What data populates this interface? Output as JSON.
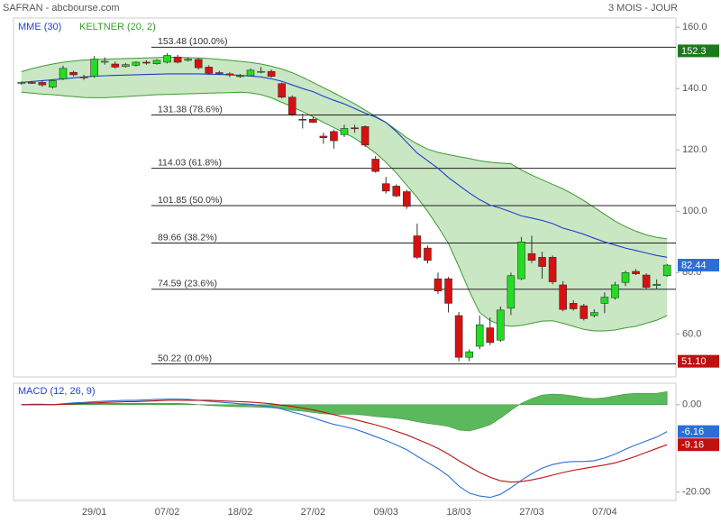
{
  "chart_data": [
    {
      "type": "candlestick",
      "title": "SAFRAN - abcbourse.com",
      "subtitle": "3 MOIS - JOUR",
      "categories": [
        null,
        null,
        null,
        null,
        null,
        null,
        null,
        "29/01",
        null,
        null,
        null,
        null,
        null,
        null,
        "07/02",
        null,
        null,
        null,
        null,
        null,
        null,
        "18/02",
        null,
        null,
        null,
        null,
        null,
        null,
        "27/02",
        null,
        null,
        null,
        null,
        null,
        null,
        "09/03",
        null,
        null,
        null,
        null,
        null,
        null,
        "18/03",
        null,
        null,
        null,
        null,
        null,
        null,
        "27/03",
        null,
        null,
        null,
        null,
        null,
        null,
        "07/04",
        null,
        null,
        null,
        null,
        null,
        null
      ],
      "open": [
        141.8,
        142.0,
        142.0,
        140.5,
        143.2,
        145.3,
        143.8,
        144.0,
        148.6,
        148.0,
        147.2,
        147.6,
        148.6,
        148.1,
        148.6,
        150.3,
        149.2,
        149.5,
        147.0,
        145.2,
        144.8,
        144.0,
        144.2,
        145.4,
        145.6,
        141.6,
        137.2,
        130.0,
        130.0,
        124.5,
        126.0,
        125.0,
        127.2,
        127.6,
        117.0,
        109.0,
        108.2,
        106.4,
        92.0,
        88.0,
        78.0,
        78.0,
        66.0,
        52.4,
        56.0,
        62.0,
        58.0,
        68.4,
        78.0,
        86.2,
        85.0,
        85.0,
        76.0,
        70.0,
        69.2,
        66.0,
        70.0,
        71.8,
        76.8,
        80.4,
        79.2,
        75.8,
        79.0
      ],
      "high": [
        142.4,
        142.5,
        142.6,
        143.0,
        147.5,
        145.8,
        144.5,
        150.6,
        150.2,
        148.8,
        148.4,
        148.9,
        149.2,
        149.6,
        151.5,
        151.0,
        150.2,
        150.0,
        147.6,
        145.8,
        145.3,
        144.8,
        146.6,
        147.0,
        146.2,
        142.0,
        137.8,
        131.8,
        130.8,
        125.6,
        126.6,
        128.2,
        128.2,
        128.0,
        118.0,
        111.2,
        108.8,
        107.0,
        96.0,
        88.8,
        80.0,
        78.6,
        67.2,
        55.0,
        66.0,
        65.4,
        69.0,
        80.0,
        91.6,
        92.0,
        86.8,
        85.6,
        77.2,
        71.0,
        69.8,
        68.0,
        73.6,
        77.0,
        80.6,
        81.2,
        79.8,
        77.8,
        82.8
      ],
      "low": [
        141.2,
        141.5,
        140.6,
        140.0,
        142.8,
        144.0,
        142.8,
        143.5,
        147.8,
        146.5,
        146.8,
        147.2,
        147.8,
        147.8,
        148.2,
        148.2,
        148.8,
        146.2,
        144.6,
        144.5,
        143.8,
        143.5,
        144.0,
        145.0,
        143.6,
        136.8,
        131.0,
        127.0,
        128.8,
        122.0,
        120.4,
        124.2,
        125.6,
        121.0,
        112.6,
        105.8,
        104.6,
        100.8,
        84.4,
        83.0,
        73.0,
        67.0,
        51.1,
        51.2,
        55.0,
        56.4,
        57.4,
        66.2,
        77.6,
        83.2,
        78.0,
        76.2,
        67.4,
        67.6,
        64.4,
        65.4,
        66.8,
        71.2,
        75.6,
        79.2,
        74.6,
        74.8,
        78.6
      ],
      "close": [
        142.0,
        141.8,
        141.2,
        142.6,
        146.6,
        144.5,
        143.7,
        149.6,
        148.9,
        147.0,
        147.8,
        148.6,
        148.4,
        149.2,
        150.8,
        148.6,
        149.6,
        146.8,
        145.0,
        144.9,
        144.4,
        144.2,
        146.0,
        145.6,
        144.0,
        137.2,
        131.6,
        129.9,
        129.0,
        124.0,
        123.0,
        127.0,
        127.0,
        121.6,
        113.0,
        106.6,
        105.0,
        101.6,
        85.0,
        84.0,
        74.0,
        70.0,
        52.4,
        54.2,
        63.0,
        57.2,
        67.8,
        79.0,
        90.0,
        84.0,
        82.0,
        77.0,
        68.0,
        68.2,
        65.0,
        67.0,
        72.0,
        76.0,
        80.0,
        79.6,
        75.2,
        76.2,
        82.44
      ],
      "up_color": "#22dd22",
      "down_color": "#d81010",
      "series": [
        {
          "name": "MME (30)",
          "color": "#1f3fcf",
          "values": [
            142,
            142.3,
            142.6,
            142.9,
            143.2,
            143.5,
            143.8,
            144,
            144.2,
            144.3,
            144.4,
            144.5,
            144.6,
            144.7,
            144.8,
            144.8,
            144.8,
            144.8,
            144.7,
            144.6,
            144.5,
            144.3,
            144.1,
            143.8,
            143.2,
            142.4,
            141.2,
            140,
            139,
            137.5,
            136.2,
            135,
            133.5,
            132,
            130.7,
            129,
            126,
            122.5,
            119,
            116.5,
            114,
            111,
            108.5,
            106,
            103.8,
            102,
            101,
            99.8,
            98.5,
            97.8,
            97,
            96,
            94.5,
            93.6,
            92.5,
            91.2,
            90,
            89,
            88,
            87.2,
            86.4,
            85.6,
            85
          ]
        }
      ],
      "band": {
        "name": "KELTNER (20, 2)",
        "color": "#3f9a35",
        "fill": "#bfe3b8",
        "upper": [
          145.5,
          146.5,
          147.3,
          148,
          148.6,
          149,
          149.3,
          149.5,
          149.6,
          149.7,
          149.8,
          149.9,
          150,
          150.1,
          150.2,
          150.2,
          150.1,
          150,
          149.8,
          149.5,
          149.2,
          148.9,
          148.5,
          148,
          147.3,
          146.4,
          145.2,
          143.7,
          142,
          140.3,
          138.6,
          136.8,
          135,
          133,
          131,
          129,
          126.5,
          124,
          122,
          120.3,
          119.2,
          118.5,
          117.8,
          117.2,
          116.5,
          116,
          115.7,
          115.5,
          113.5,
          111.8,
          110.3,
          108.8,
          107.3,
          105.5,
          103.5,
          101.3,
          99,
          96.8,
          95,
          93.5,
          92.3,
          91.5,
          91
        ],
        "lower": [
          138.8,
          138.5,
          138.2,
          138,
          137.7,
          137.4,
          137.1,
          137,
          137,
          137.2,
          137.4,
          137.6,
          137.8,
          138,
          138.1,
          138.2,
          138.3,
          138.4,
          138.5,
          138.6,
          138.7,
          138.8,
          138.6,
          138,
          137,
          135.5,
          134,
          132.5,
          130.8,
          129,
          127.3,
          125.6,
          123.8,
          121.5,
          119,
          116,
          112.5,
          108.5,
          104.5,
          100,
          95,
          89.5,
          82,
          74,
          67,
          64.4,
          63,
          62.5,
          62.8,
          63.5,
          64.2,
          64.3,
          63.5,
          62.5,
          61.5,
          61,
          61,
          61.3,
          62,
          62.5,
          63.5,
          64.5,
          66
        ]
      },
      "fib": [
        {
          "value": 153.48,
          "label": "153.48 (100.0%)"
        },
        {
          "value": 131.38,
          "label": "131.38 (78.6%)"
        },
        {
          "value": 114.03,
          "label": "114.03 (61.8%)"
        },
        {
          "value": 101.85,
          "label": "101.85 (50.0%)"
        },
        {
          "value": 89.66,
          "label": "89.66 (38.2%)"
        },
        {
          "value": 74.59,
          "label": "74.59 (23.6%)"
        },
        {
          "value": 50.22,
          "label": "50.22 (0.0%)"
        }
      ],
      "tags": [
        {
          "value": 152.3,
          "color": "#1c7a1c"
        },
        {
          "value": 51.1,
          "label": "51.10",
          "color": "#c01010"
        }
      ],
      "last_close_tag_color": "#2b6fd6",
      "ylim": [
        46,
        163
      ],
      "yticks": [
        {
          "value": 160,
          "label": "160.0"
        },
        {
          "value": 140,
          "label": "140.0"
        },
        {
          "value": 120,
          "label": "120.0"
        },
        {
          "value": 100,
          "label": "100.0"
        },
        {
          "value": 80,
          "label": "80.0"
        },
        {
          "value": 60,
          "label": "60.0"
        }
      ]
    },
    {
      "type": "macd",
      "title": "MACD (12, 26, 9)",
      "histogram": {
        "color": "#3c9a3c",
        "fill": "#5cb85c",
        "values": [
          0,
          0.1,
          0.1,
          0,
          0.1,
          0.2,
          0.2,
          0.3,
          0.3,
          0.3,
          0.3,
          0.3,
          0.3,
          0.3,
          0.3,
          0.3,
          0.2,
          0,
          -0.2,
          -0.3,
          -0.4,
          -0.5,
          -0.5,
          -0.6,
          -0.7,
          -0.9,
          -1.3,
          -1.5,
          -1.8,
          -2.1,
          -2.2,
          -2.2,
          -2.2,
          -2.4,
          -2.7,
          -2.9,
          -3.1,
          -3.4,
          -3.9,
          -4.3,
          -4.6,
          -5.0,
          -5.8,
          -6.0,
          -5.4,
          -4.6,
          -3.1,
          -1.3,
          0.3,
          1.4,
          2.2,
          2.4,
          2.3,
          2.0,
          1.6,
          1.4,
          1.6,
          2.0,
          2.4,
          2.6,
          2.6,
          2.6,
          3.0
        ]
      },
      "series": [
        {
          "color": "#2b6fd6",
          "values": [
            0,
            0.1,
            0.1,
            0,
            0.2,
            0.4,
            0.5,
            0.7,
            0.8,
            0.9,
            1.0,
            1.0,
            1.1,
            1.2,
            1.3,
            1.3,
            1.2,
            1.0,
            0.8,
            0.6,
            0.4,
            0.2,
            0.1,
            -0.2,
            -0.5,
            -1.0,
            -1.7,
            -2.3,
            -3.0,
            -3.8,
            -4.5,
            -5.0,
            -5.6,
            -6.4,
            -7.3,
            -8.2,
            -9.2,
            -10.3,
            -11.8,
            -13.2,
            -14.6,
            -16.3,
            -18.6,
            -20.2,
            -20.9,
            -21.2,
            -20.5,
            -19.0,
            -17.3,
            -15.8,
            -14.5,
            -13.7,
            -13.2,
            -13.0,
            -13.0,
            -12.8,
            -12.2,
            -11.3,
            -10.2,
            -9.2,
            -8.3,
            -7.4,
            -6.16
          ]
        },
        {
          "color": "#c01010",
          "values": [
            0,
            0,
            0,
            0,
            0.1,
            0.2,
            0.3,
            0.4,
            0.5,
            0.6,
            0.7,
            0.7,
            0.8,
            0.9,
            1.0,
            1.0,
            1.0,
            1.0,
            1.0,
            0.9,
            0.8,
            0.7,
            0.6,
            0.4,
            0.2,
            -0.1,
            -0.4,
            -0.8,
            -1.2,
            -1.7,
            -2.3,
            -2.8,
            -3.4,
            -4.0,
            -4.6,
            -5.3,
            -6.1,
            -6.9,
            -7.9,
            -8.9,
            -10.0,
            -11.3,
            -12.8,
            -14.2,
            -15.5,
            -16.6,
            -17.4,
            -17.7,
            -17.6,
            -17.2,
            -16.7,
            -16.1,
            -15.5,
            -15.0,
            -14.6,
            -14.2,
            -13.8,
            -13.3,
            -12.6,
            -11.8,
            -10.9,
            -10.0,
            -9.16
          ]
        }
      ],
      "ylim": [
        -21.9,
        4.9
      ],
      "yticks": [
        {
          "value": 0,
          "label": "0.00"
        },
        {
          "value": -20,
          "label": "-20.00"
        }
      ]
    }
  ]
}
